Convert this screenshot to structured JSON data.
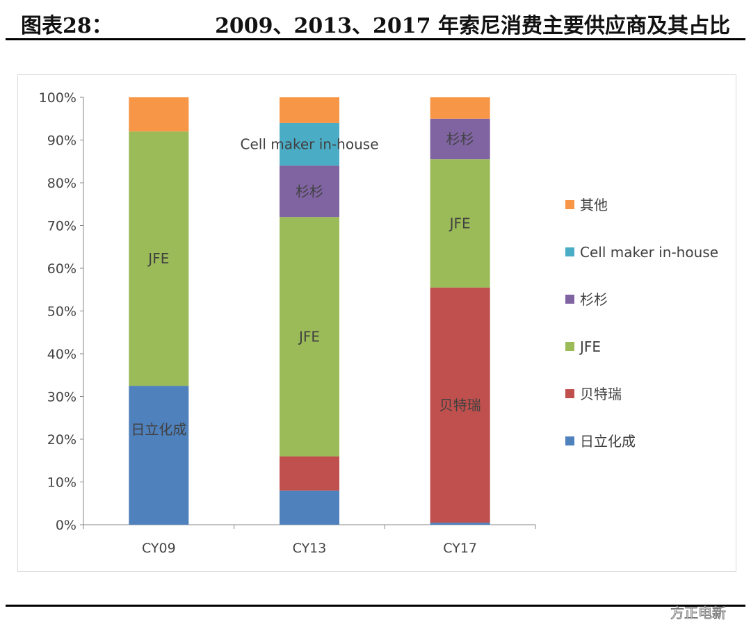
{
  "header": {
    "figure_number": "图表28：",
    "title": "2009、2013、2017 年索尼消费主要供应商及其占比"
  },
  "watermark": "方正电新",
  "chart_data": {
    "type": "bar",
    "stacked": true,
    "categories": [
      "CY09",
      "CY13",
      "CY17"
    ],
    "ylim": [
      0,
      100
    ],
    "yticks": [
      "0%",
      "10%",
      "20%",
      "30%",
      "40%",
      "50%",
      "60%",
      "70%",
      "80%",
      "90%",
      "100%"
    ],
    "grid": false,
    "legend_position": "right",
    "series": [
      {
        "name": "日立化成",
        "color": "#4f81bd",
        "values": [
          32.5,
          8,
          0.5
        ],
        "labels": [
          "日立化成",
          "",
          ""
        ]
      },
      {
        "name": "贝特瑞",
        "color": "#c0504d",
        "values": [
          0,
          8,
          55
        ],
        "labels": [
          "",
          "",
          "贝特瑞"
        ]
      },
      {
        "name": "JFE",
        "color": "#9bbb59",
        "values": [
          59.5,
          56,
          30
        ],
        "labels": [
          "JFE",
          "JFE",
          "JFE"
        ]
      },
      {
        "name": "杉杉",
        "color": "#8064a2",
        "values": [
          0,
          12,
          9.5
        ],
        "labels": [
          "",
          "杉杉",
          "杉杉"
        ]
      },
      {
        "name": "Cell maker in-house",
        "color": "#4bacc6",
        "values": [
          0,
          10,
          0
        ],
        "labels": [
          "",
          "Cell maker in-house",
          ""
        ]
      },
      {
        "name": "其他",
        "color": "#f79646",
        "values": [
          8,
          6,
          5
        ],
        "labels": [
          "",
          "",
          ""
        ]
      }
    ]
  }
}
